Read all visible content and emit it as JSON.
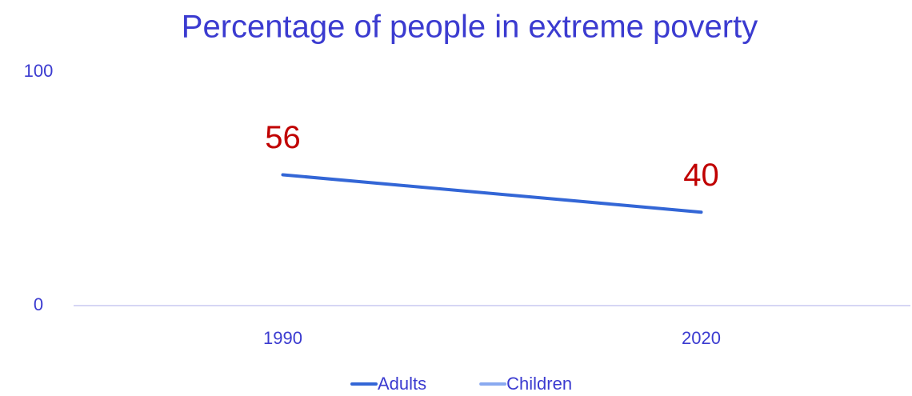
{
  "chart_data": {
    "type": "line",
    "title": "Percentage of people in extreme poverty",
    "categories": [
      "1990",
      "2020"
    ],
    "series": [
      {
        "name": "Adults",
        "color": "#3366d6",
        "values": [
          56,
          40
        ]
      },
      {
        "name": "Children",
        "color": "#8aaaf0",
        "values": [
          null,
          null
        ]
      }
    ],
    "data_label_color": "#c00000",
    "ylim": [
      0,
      100
    ],
    "yticks": [
      0,
      100
    ],
    "grid": false
  }
}
